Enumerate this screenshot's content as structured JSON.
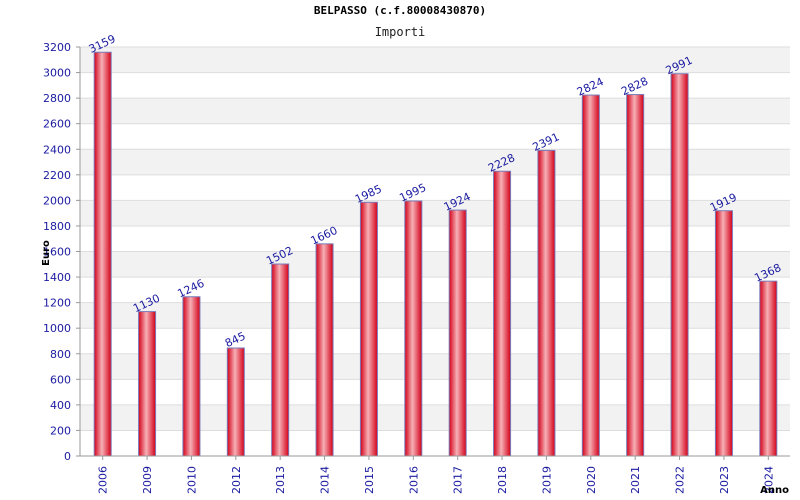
{
  "chart_data": {
    "type": "bar",
    "title": "BELPASSO (c.f.80008430870)",
    "subtitle": "Importi",
    "xlabel": "Anno",
    "ylabel": "Euro",
    "ylim": [
      0,
      3200
    ],
    "yticks": [
      0,
      200,
      400,
      600,
      800,
      1000,
      1200,
      1400,
      1600,
      1800,
      2000,
      2200,
      2400,
      2600,
      2800,
      3000,
      3200
    ],
    "grid": true,
    "categories": [
      "2006",
      "2009",
      "2010",
      "2012",
      "2013",
      "2014",
      "2015",
      "2016",
      "2017",
      "2018",
      "2019",
      "2020",
      "2021",
      "2022",
      "2023",
      "2024"
    ],
    "values": [
      3159,
      1130,
      1246,
      845,
      1502,
      1660,
      1985,
      1995,
      1924,
      2228,
      2391,
      2824,
      2828,
      2991,
      1919,
      1368
    ],
    "colors": {
      "bar_edge": "#d40018",
      "bar_center": "#f6b0b6",
      "bar_outline": "#7a7ab8",
      "axis_text": "#1a1aa0",
      "band": "#f2f2f2"
    }
  }
}
